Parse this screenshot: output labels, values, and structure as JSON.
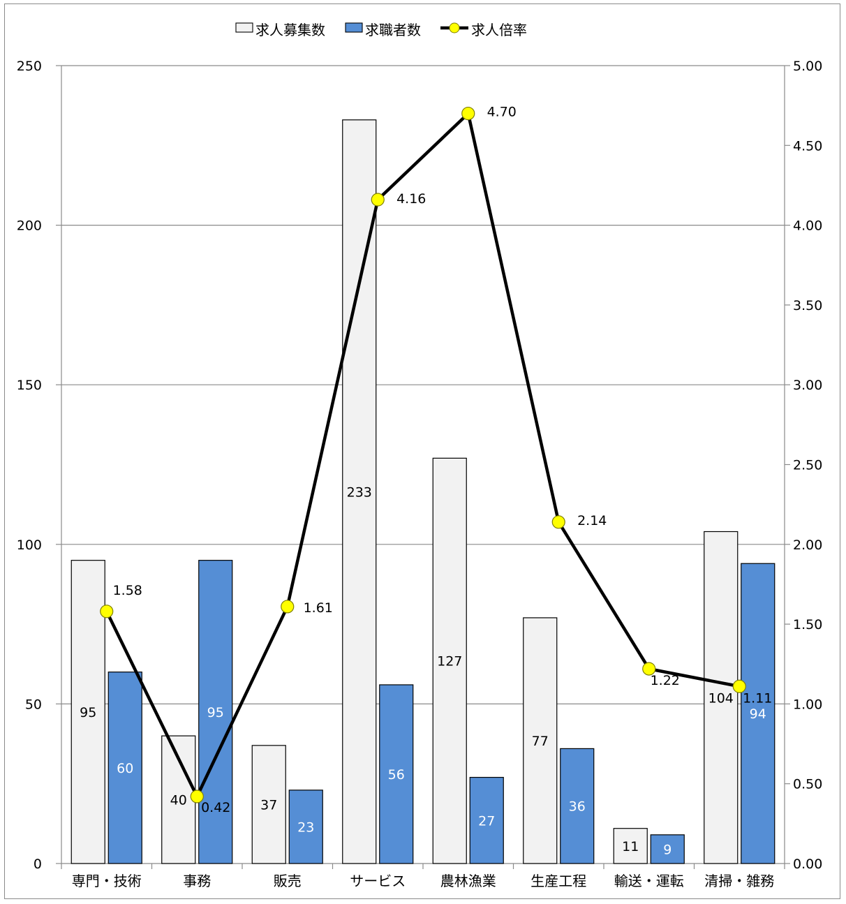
{
  "chart_data": {
    "type": "bar",
    "title": "",
    "categories": [
      "専門・技術",
      "事務",
      "販売",
      "サービス",
      "農林漁業",
      "生産工程",
      "輸送・運転",
      "清掃・雑務"
    ],
    "series": [
      {
        "name": "求人募集数",
        "type": "bar",
        "axis": "left",
        "color": "#f2f2f2",
        "values": [
          95,
          40,
          37,
          233,
          127,
          77,
          11,
          104
        ]
      },
      {
        "name": "求職者数",
        "type": "bar",
        "axis": "left",
        "color": "#558ed5",
        "values": [
          60,
          95,
          23,
          56,
          27,
          36,
          9,
          94
        ]
      },
      {
        "name": "求人倍率",
        "type": "line",
        "axis": "right",
        "color": "#000000",
        "marker_color": "#ffff00",
        "values": [
          1.58,
          0.42,
          1.61,
          4.16,
          4.7,
          2.14,
          1.22,
          1.11
        ]
      }
    ],
    "bar_labels": {
      "求人募集数": [
        "95",
        "40",
        "37",
        "233",
        "127",
        "77",
        "11",
        "104"
      ],
      "求職者数": [
        "60",
        "95",
        "23",
        "56",
        "27",
        "36",
        "9",
        "94"
      ],
      "求人倍率": [
        "1.58",
        "0.42",
        "1.61",
        "4.16",
        "4.70",
        "2.14",
        "1.22",
        "1.11"
      ]
    },
    "y_left": {
      "min": 0,
      "max": 250,
      "ticks": [
        "0",
        "50",
        "100",
        "150",
        "200",
        "250"
      ]
    },
    "y_right": {
      "min": 0,
      "max": 5,
      "ticks": [
        "0.00",
        "0.50",
        "1.00",
        "1.50",
        "2.00",
        "2.50",
        "3.00",
        "3.50",
        "4.00",
        "4.50",
        "5.00"
      ]
    },
    "grid": true,
    "legend_position": "top"
  }
}
